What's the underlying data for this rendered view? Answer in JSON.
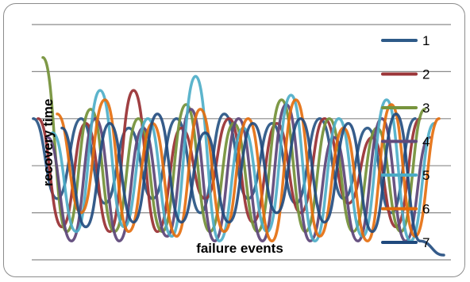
{
  "chart_data": {
    "type": "line",
    "title": "",
    "xlabel": "failure events",
    "ylabel": "recovery time",
    "ylim": [
      0,
      5
    ],
    "grid": true,
    "legend_position": "right",
    "series": [
      {
        "name": "1",
        "color": "#2e5a88",
        "values": [
          3.0,
          1.3,
          3.0,
          1.2,
          2.8,
          1.3,
          3.0,
          1.0,
          3.1,
          1.3,
          2.9,
          1.2,
          3.0,
          1.3,
          2.8,
          1.0,
          3.0
        ]
      },
      {
        "name": "2",
        "color": "#9b3538",
        "values": [
          3.0,
          0.7,
          2.9,
          0.6,
          3.6,
          0.6,
          2.8,
          1.3,
          3.0,
          0.8,
          2.9,
          1.0,
          3.0,
          1.2,
          2.6,
          0.7,
          3.0
        ]
      },
      {
        "name": "3",
        "color": "#77943d",
        "values": [
          4.3,
          0.6,
          3.2,
          0.6,
          3.0,
          0.6,
          3.3,
          0.6,
          2.9,
          0.6,
          3.4,
          0.6,
          3.0,
          0.6,
          2.8,
          0.6,
          3.2
        ]
      },
      {
        "name": "4",
        "color": "#604a7b",
        "values": [
          2.6,
          0.4,
          3.0,
          0.4,
          2.8,
          0.5,
          3.2,
          0.4,
          3.0,
          0.4,
          3.3,
          0.4,
          2.6,
          0.4,
          3.0,
          0.4,
          2.6
        ]
      },
      {
        "name": "5",
        "color": "#4aacc6",
        "values": [
          2.7,
          0.6,
          3.6,
          0.7,
          3.0,
          0.5,
          3.9,
          0.4,
          2.8,
          0.6,
          3.5,
          0.4,
          3.0,
          0.5,
          3.4,
          0.4,
          2.9
        ]
      },
      {
        "name": "6",
        "color": "#e46c0a",
        "values": [
          3.1,
          1.0,
          3.4,
          0.6,
          2.9,
          0.5,
          3.2,
          0.6,
          3.0,
          0.4,
          3.4,
          0.5,
          2.8,
          0.4,
          3.3,
          0.5,
          3.0
        ]
      },
      {
        "name": "7",
        "color": "#1f497d",
        "values": [
          2.8,
          0.7,
          2.9,
          0.8,
          3.1,
          0.8,
          2.7,
          0.8,
          2.9,
          1.0,
          3.0,
          0.8,
          2.9,
          0.6,
          3.1,
          0.4,
          0.1
        ]
      }
    ]
  }
}
